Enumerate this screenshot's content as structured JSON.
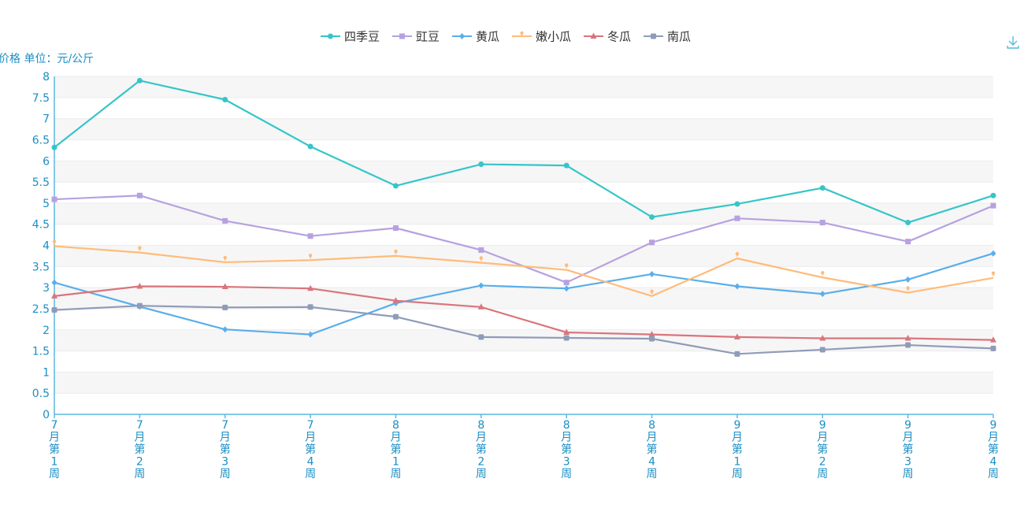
{
  "chart_data": {
    "type": "line",
    "ylabel": "价格 单位：元/公斤",
    "ylim": [
      0,
      8
    ],
    "yticks": [
      "0",
      "0.5",
      "1",
      "1.5",
      "2",
      "2.5",
      "3",
      "3.5",
      "4",
      "4.5",
      "5",
      "5.5",
      "6",
      "6.5",
      "7",
      "7.5",
      "8"
    ],
    "categories": [
      "7月第1周",
      "7月第2周",
      "7月第3周",
      "7月第4周",
      "8月第1周",
      "8月第2周",
      "8月第3周",
      "8月第4周",
      "9月第1周",
      "9月第2周",
      "9月第3周",
      "9月第4周"
    ],
    "grid": true,
    "legend_position": "top-center",
    "series": [
      {
        "name": "四季豆",
        "color": "#36c5c9",
        "marker": "circle",
        "values": [
          6.32,
          7.9,
          7.45,
          6.34,
          5.41,
          5.92,
          5.89,
          4.67,
          4.98,
          5.36,
          4.54,
          5.18
        ]
      },
      {
        "name": "豇豆",
        "color": "#b7a1e0",
        "marker": "square",
        "values": [
          5.09,
          5.18,
          4.58,
          4.22,
          4.41,
          3.89,
          3.12,
          4.07,
          4.64,
          4.54,
          4.09,
          4.94
        ]
      },
      {
        "name": "黄瓜",
        "color": "#5aaeea",
        "marker": "diamond",
        "values": [
          3.12,
          2.55,
          2.01,
          1.89,
          2.63,
          3.05,
          2.98,
          3.32,
          3.03,
          2.85,
          3.19,
          3.81
        ]
      },
      {
        "name": "嫩小瓜",
        "color": "#ffbb7a",
        "marker": "pin",
        "values": [
          3.98,
          3.83,
          3.6,
          3.65,
          3.75,
          3.59,
          3.42,
          2.8,
          3.69,
          3.24,
          2.88,
          3.23
        ]
      },
      {
        "name": "冬瓜",
        "color": "#d9757c",
        "marker": "triangle",
        "values": [
          2.8,
          3.03,
          3.02,
          2.98,
          2.69,
          2.54,
          1.94,
          1.89,
          1.83,
          1.8,
          1.8,
          1.76
        ]
      },
      {
        "name": "南瓜",
        "color": "#8f9bb8",
        "marker": "roundrect",
        "values": [
          2.47,
          2.57,
          2.53,
          2.54,
          2.31,
          1.83,
          1.81,
          1.79,
          1.43,
          1.53,
          1.64,
          1.56
        ]
      }
    ]
  },
  "toolbar": {
    "download_icon": "download-icon",
    "color": "#5ab8de"
  }
}
